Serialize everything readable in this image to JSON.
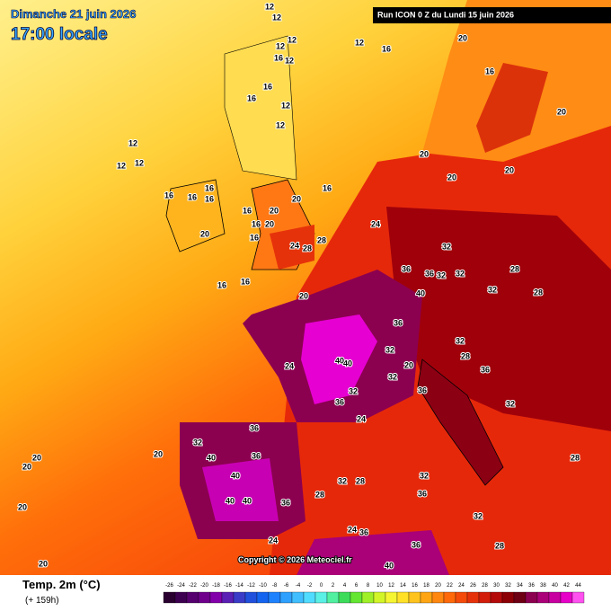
{
  "header": {
    "date": "Dimanche 21 juin 2026",
    "time": "17:00 locale",
    "run": "Run ICON 0 Z du Lundi 15 juin 2026"
  },
  "copyright": "Copyright © 2026 Meteociel.fr",
  "legend": {
    "title": "Temp. 2m (°C)",
    "lead": "(+ 159h)",
    "ticks": [
      -26,
      -24,
      -22,
      -20,
      -18,
      -16,
      -14,
      -12,
      -10,
      -8,
      -6,
      -4,
      -2,
      0,
      2,
      4,
      6,
      8,
      10,
      12,
      14,
      16,
      18,
      20,
      22,
      24,
      26,
      28,
      30,
      32,
      34,
      36,
      38,
      40,
      42,
      44
    ],
    "colors": [
      "#2a0030",
      "#3d0050",
      "#55006e",
      "#6e008c",
      "#8200aa",
      "#5a1fb4",
      "#3a3cc8",
      "#2050dc",
      "#1464f0",
      "#1e82ff",
      "#2ea0ff",
      "#40beff",
      "#50dcff",
      "#5af0e6",
      "#50f0a0",
      "#3cdc5a",
      "#64e632",
      "#a0f028",
      "#d2f528",
      "#f5f532",
      "#ffe128",
      "#ffc31e",
      "#ffa514",
      "#ff870f",
      "#ff690a",
      "#f54b0a",
      "#e6320a",
      "#d21e0a",
      "#b40a0a",
      "#8c0005",
      "#6e0014",
      "#8c0050",
      "#aa0078",
      "#c800a0",
      "#e600c8",
      "#ff50f0"
    ]
  },
  "temperatures": [
    12,
    12,
    12,
    12,
    16,
    12,
    16,
    12,
    16,
    12,
    12,
    12,
    12,
    16,
    16,
    16,
    16,
    20,
    16,
    16,
    16,
    20,
    20,
    20,
    24,
    28,
    28,
    16,
    16,
    16,
    20,
    24,
    12,
    16,
    20,
    16,
    20,
    20,
    20,
    20,
    32,
    36,
    36,
    32,
    32,
    28,
    32,
    28,
    40,
    36,
    40,
    40,
    32,
    32,
    36,
    20,
    28,
    32,
    36,
    24,
    32,
    36,
    24,
    36,
    32,
    40,
    36,
    40,
    40,
    40,
    36,
    28,
    32,
    28,
    32,
    36,
    32,
    28,
    24,
    36,
    36,
    40,
    20,
    20,
    20,
    20,
    20,
    24,
    32,
    28
  ]
}
